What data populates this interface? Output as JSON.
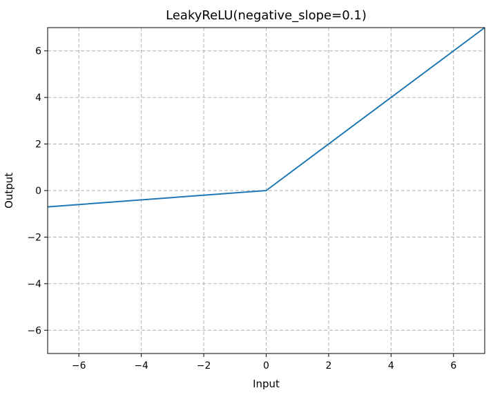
{
  "chart_data": {
    "type": "line",
    "title": "LeakyReLU(negative_slope=0.1)",
    "xlabel": "Input",
    "ylabel": "Output",
    "xlim": [
      -7,
      7
    ],
    "ylim": [
      -7,
      7
    ],
    "xticks": [
      -6,
      -4,
      -2,
      0,
      2,
      4,
      6
    ],
    "yticks": [
      -6,
      -4,
      -2,
      0,
      2,
      4,
      6
    ],
    "grid": true,
    "series": [
      {
        "color": "#1f77b4",
        "x": [
          -7,
          0,
          7
        ],
        "y": [
          -0.7,
          0,
          7
        ]
      }
    ]
  }
}
